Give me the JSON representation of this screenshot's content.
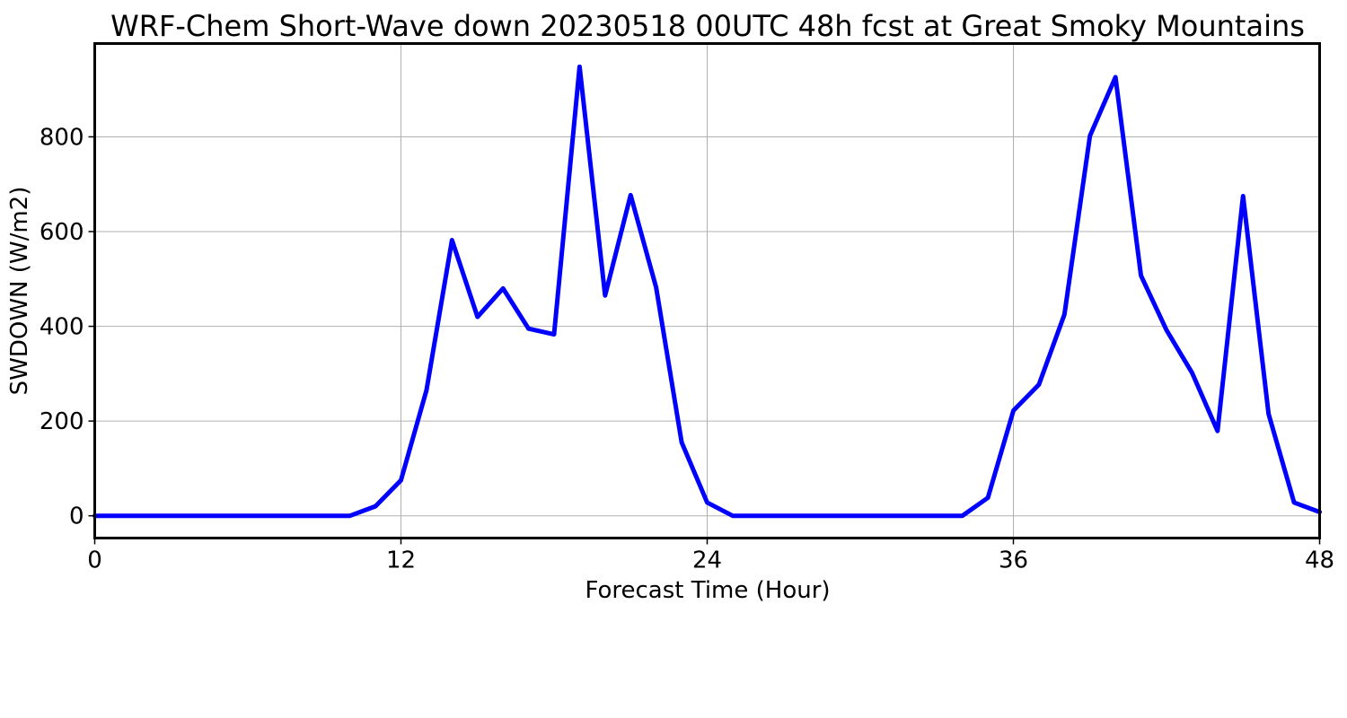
{
  "chart_data": {
    "type": "line",
    "title": "WRF-Chem Short-Wave down  20230518 00UTC 48h fcst at Great Smoky Mountains",
    "xlabel": "Forecast Time (Hour)",
    "ylabel": "SWDOWN  (W/m2)",
    "xlim": [
      0,
      48
    ],
    "ylim": [
      -47,
      997
    ],
    "xticks": [
      0,
      12,
      24,
      36,
      48
    ],
    "yticks": [
      0,
      200,
      400,
      600,
      800
    ],
    "grid": true,
    "series": [
      {
        "color": "#0000ff",
        "x": [
          0,
          1,
          2,
          3,
          4,
          5,
          6,
          7,
          8,
          9,
          10,
          11,
          12,
          13,
          14,
          15,
          16,
          17,
          18,
          19,
          20,
          21,
          22,
          23,
          24,
          25,
          26,
          27,
          28,
          29,
          30,
          31,
          32,
          33,
          34,
          35,
          36,
          37,
          38,
          39,
          40,
          41,
          42,
          43,
          44,
          45,
          46,
          47,
          48
        ],
        "values": [
          0,
          0,
          0,
          0,
          0,
          0,
          0,
          0,
          0,
          0,
          0,
          20,
          75,
          265,
          582,
          420,
          480,
          395,
          383,
          948,
          465,
          677,
          482,
          155,
          28,
          0,
          0,
          0,
          0,
          0,
          0,
          0,
          0,
          0,
          0,
          38,
          222,
          277,
          425,
          802,
          926,
          507,
          392,
          302,
          179,
          675,
          215,
          28,
          8
        ]
      }
    ]
  }
}
